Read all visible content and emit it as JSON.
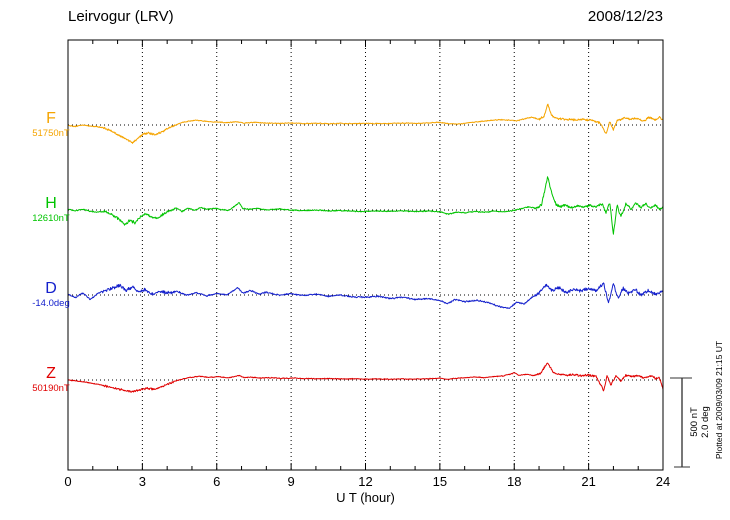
{
  "header": {
    "title": "Leirvogur (LRV)",
    "date": "2008/12/23"
  },
  "chart_data": {
    "type": "line",
    "title": "Leirvogur (LRV)",
    "date": "2008/12/23",
    "xlabel": "U T (hour)",
    "x_range": [
      0,
      24
    ],
    "x_ticks": [
      0,
      3,
      6,
      9,
      12,
      15,
      18,
      21,
      24
    ],
    "grid": "dotted-vertical-at-3h",
    "legend_position": "left-of-traces",
    "scale_bar": {
      "nt_label": "500 nT",
      "deg_label": "2.0 deg",
      "nt_value": 500,
      "deg_value": 2.0
    },
    "plotted_at": "Plotted at 2009/03/09 21:15 UT",
    "series": [
      {
        "name": "F",
        "label": "F",
        "value_label": "51750nT",
        "baseline_value": 51750,
        "unit": "nT",
        "color": "#f5a400",
        "noise": 4,
        "anchors": [
          [
            0,
            -2
          ],
          [
            0.3,
            -8
          ],
          [
            0.6,
            0
          ],
          [
            0.9,
            -6
          ],
          [
            1.2,
            -10
          ],
          [
            1.5,
            -18
          ],
          [
            1.8,
            -38
          ],
          [
            2.1,
            -62
          ],
          [
            2.35,
            -78
          ],
          [
            2.6,
            -100
          ],
          [
            2.8,
            -78
          ],
          [
            3.0,
            -52
          ],
          [
            3.25,
            -44
          ],
          [
            3.5,
            -56
          ],
          [
            3.75,
            -42
          ],
          [
            4.0,
            -22
          ],
          [
            4.3,
            -2
          ],
          [
            4.6,
            14
          ],
          [
            4.9,
            22
          ],
          [
            5.2,
            27
          ],
          [
            5.5,
            22
          ],
          [
            5.8,
            18
          ],
          [
            6.1,
            16
          ],
          [
            6.4,
            13
          ],
          [
            6.8,
            19
          ],
          [
            7.1,
            11
          ],
          [
            7.5,
            15
          ],
          [
            8.0,
            11
          ],
          [
            8.5,
            9
          ],
          [
            9.0,
            11
          ],
          [
            9.5,
            8
          ],
          [
            10,
            10
          ],
          [
            10.5,
            8
          ],
          [
            11,
            9
          ],
          [
            11.5,
            8
          ],
          [
            12,
            9
          ],
          [
            12.5,
            8
          ],
          [
            13,
            9
          ],
          [
            13.5,
            11
          ],
          [
            14,
            9
          ],
          [
            14.5,
            12
          ],
          [
            15,
            15
          ],
          [
            15.4,
            7
          ],
          [
            15.8,
            5
          ],
          [
            16.2,
            13
          ],
          [
            16.6,
            19
          ],
          [
            17,
            25
          ],
          [
            17.4,
            30
          ],
          [
            17.8,
            27
          ],
          [
            18.1,
            23
          ],
          [
            18.4,
            35
          ],
          [
            18.7,
            43
          ],
          [
            19.0,
            33
          ],
          [
            19.2,
            48
          ],
          [
            19.35,
            120
          ],
          [
            19.5,
            52
          ],
          [
            19.7,
            38
          ],
          [
            20,
            33
          ],
          [
            20.4,
            29
          ],
          [
            20.8,
            31
          ],
          [
            21.2,
            25
          ],
          [
            21.5,
            8
          ],
          [
            21.7,
            -52
          ],
          [
            21.85,
            18
          ],
          [
            22.0,
            -28
          ],
          [
            22.15,
            24
          ],
          [
            22.4,
            38
          ],
          [
            22.7,
            33
          ],
          [
            23.0,
            37
          ],
          [
            23.2,
            20
          ],
          [
            23.45,
            44
          ],
          [
            23.7,
            28
          ],
          [
            23.85,
            46
          ],
          [
            24,
            28
          ]
        ]
      },
      {
        "name": "H",
        "label": "H",
        "value_label": "12610nT",
        "baseline_value": 12610,
        "unit": "nT",
        "color": "#00c400",
        "noise": 5,
        "anchors": [
          [
            0,
            2
          ],
          [
            0.3,
            -4
          ],
          [
            0.6,
            4
          ],
          [
            0.9,
            -8
          ],
          [
            1.2,
            -12
          ],
          [
            1.5,
            -6
          ],
          [
            1.8,
            -28
          ],
          [
            2.05,
            -52
          ],
          [
            2.3,
            -82
          ],
          [
            2.5,
            -58
          ],
          [
            2.7,
            -72
          ],
          [
            2.9,
            -44
          ],
          [
            3.1,
            -22
          ],
          [
            3.35,
            -38
          ],
          [
            3.6,
            -46
          ],
          [
            3.85,
            -20
          ],
          [
            4.1,
            -4
          ],
          [
            4.35,
            12
          ],
          [
            4.6,
            -8
          ],
          [
            4.85,
            10
          ],
          [
            5.1,
            -2
          ],
          [
            5.35,
            14
          ],
          [
            5.6,
            4
          ],
          [
            5.9,
            10
          ],
          [
            6.2,
            2
          ],
          [
            6.5,
            -2
          ],
          [
            6.9,
            42
          ],
          [
            7.05,
            8
          ],
          [
            7.3,
            4
          ],
          [
            7.6,
            10
          ],
          [
            8,
            0
          ],
          [
            8.5,
            6
          ],
          [
            9,
            0
          ],
          [
            9.5,
            -4
          ],
          [
            10,
            0
          ],
          [
            10.5,
            -5
          ],
          [
            11,
            -4
          ],
          [
            11.5,
            -7
          ],
          [
            12,
            -8
          ],
          [
            12.5,
            -5
          ],
          [
            13,
            -7
          ],
          [
            13.5,
            -5
          ],
          [
            14,
            -8
          ],
          [
            14.5,
            -6
          ],
          [
            15,
            -10
          ],
          [
            15.35,
            -24
          ],
          [
            15.65,
            -12
          ],
          [
            16,
            -16
          ],
          [
            16.4,
            -8
          ],
          [
            16.8,
            -13
          ],
          [
            17.2,
            -6
          ],
          [
            17.6,
            -11
          ],
          [
            18,
            -2
          ],
          [
            18.3,
            8
          ],
          [
            18.6,
            18
          ],
          [
            18.9,
            9
          ],
          [
            19.1,
            28
          ],
          [
            19.35,
            188
          ],
          [
            19.55,
            75
          ],
          [
            19.7,
            28
          ],
          [
            19.85,
            18
          ],
          [
            20.05,
            26
          ],
          [
            20.3,
            14
          ],
          [
            20.55,
            24
          ],
          [
            20.8,
            16
          ],
          [
            21.05,
            24
          ],
          [
            21.3,
            18
          ],
          [
            21.55,
            36
          ],
          [
            21.7,
            -18
          ],
          [
            21.85,
            42
          ],
          [
            22.0,
            -135
          ],
          [
            22.15,
            28
          ],
          [
            22.3,
            -38
          ],
          [
            22.5,
            34
          ],
          [
            22.7,
            8
          ],
          [
            22.9,
            38
          ],
          [
            23.1,
            14
          ],
          [
            23.3,
            34
          ],
          [
            23.5,
            10
          ],
          [
            23.7,
            28
          ],
          [
            23.85,
            6
          ],
          [
            24,
            18
          ]
        ]
      },
      {
        "name": "D",
        "label": "D",
        "value_label": "-14.0deg",
        "baseline_value": -14.0,
        "unit": "deg",
        "color": "#1420cc",
        "noise": 0.025,
        "anchors": [
          [
            0,
            0.02
          ],
          [
            0.3,
            -0.06
          ],
          [
            0.6,
            0.05
          ],
          [
            0.9,
            -0.1
          ],
          [
            1.2,
            0.04
          ],
          [
            1.5,
            0.1
          ],
          [
            1.8,
            0.16
          ],
          [
            2.1,
            0.22
          ],
          [
            2.35,
            0.1
          ],
          [
            2.6,
            0.18
          ],
          [
            2.85,
            0.06
          ],
          [
            3.1,
            0.13
          ],
          [
            3.4,
            0.02
          ],
          [
            3.7,
            0.09
          ],
          [
            4,
            0.04
          ],
          [
            4.4,
            0.08
          ],
          [
            4.8,
            0.0
          ],
          [
            5.2,
            0.05
          ],
          [
            5.6,
            -0.02
          ],
          [
            6,
            0.04
          ],
          [
            6.4,
            0.0
          ],
          [
            6.85,
            0.16
          ],
          [
            7.05,
            0.04
          ],
          [
            7.35,
            0.1
          ],
          [
            7.7,
            0.02
          ],
          [
            8,
            0.06
          ],
          [
            8.5,
            0.0
          ],
          [
            9,
            0.03
          ],
          [
            9.5,
            -0.01
          ],
          [
            10,
            0.02
          ],
          [
            10.5,
            -0.03
          ],
          [
            11,
            0.0
          ],
          [
            11.5,
            -0.04
          ],
          [
            12,
            -0.05
          ],
          [
            12.5,
            -0.03
          ],
          [
            13,
            -0.08
          ],
          [
            13.5,
            -0.05
          ],
          [
            14,
            -0.1
          ],
          [
            14.5,
            -0.08
          ],
          [
            15,
            -0.12
          ],
          [
            15.3,
            -0.2
          ],
          [
            15.6,
            -0.1
          ],
          [
            16,
            -0.15
          ],
          [
            16.5,
            -0.12
          ],
          [
            17,
            -0.18
          ],
          [
            17.4,
            -0.26
          ],
          [
            17.8,
            -0.3
          ],
          [
            18.1,
            -0.16
          ],
          [
            18.4,
            -0.2
          ],
          [
            18.7,
            -0.06
          ],
          [
            19,
            0.04
          ],
          [
            19.3,
            0.24
          ],
          [
            19.5,
            0.1
          ],
          [
            19.8,
            0.16
          ],
          [
            20.1,
            0.06
          ],
          [
            20.4,
            0.14
          ],
          [
            20.7,
            0.09
          ],
          [
            21,
            0.15
          ],
          [
            21.3,
            0.1
          ],
          [
            21.6,
            0.26
          ],
          [
            21.8,
            -0.18
          ],
          [
            22,
            0.24
          ],
          [
            22.2,
            -0.08
          ],
          [
            22.4,
            0.16
          ],
          [
            22.6,
            0.05
          ],
          [
            22.9,
            0.12
          ],
          [
            23.1,
            0.0
          ],
          [
            23.4,
            0.1
          ],
          [
            23.7,
            0.02
          ],
          [
            24,
            0.1
          ]
        ]
      },
      {
        "name": "Z",
        "label": "Z",
        "value_label": "50190nT",
        "baseline_value": 50190,
        "unit": "nT",
        "color": "#e00000",
        "noise": 4,
        "anchors": [
          [
            0,
            0
          ],
          [
            0.4,
            -6
          ],
          [
            0.8,
            -14
          ],
          [
            1.2,
            -24
          ],
          [
            1.6,
            -36
          ],
          [
            2.0,
            -50
          ],
          [
            2.3,
            -60
          ],
          [
            2.6,
            -66
          ],
          [
            2.9,
            -56
          ],
          [
            3.2,
            -46
          ],
          [
            3.5,
            -52
          ],
          [
            3.8,
            -36
          ],
          [
            4.1,
            -18
          ],
          [
            4.5,
            2
          ],
          [
            4.9,
            14
          ],
          [
            5.3,
            20
          ],
          [
            5.7,
            15
          ],
          [
            6.1,
            18
          ],
          [
            6.5,
            12
          ],
          [
            6.9,
            26
          ],
          [
            7.1,
            13
          ],
          [
            7.4,
            16
          ],
          [
            7.8,
            11
          ],
          [
            8.2,
            13
          ],
          [
            8.6,
            9
          ],
          [
            9,
            11
          ],
          [
            9.5,
            8
          ],
          [
            10,
            7
          ],
          [
            10.5,
            8
          ],
          [
            11,
            6
          ],
          [
            11.5,
            7
          ],
          [
            12,
            5
          ],
          [
            12.5,
            6
          ],
          [
            13,
            4
          ],
          [
            13.5,
            6
          ],
          [
            14,
            5
          ],
          [
            14.5,
            7
          ],
          [
            15,
            11
          ],
          [
            15.3,
            3
          ],
          [
            15.6,
            9
          ],
          [
            16,
            13
          ],
          [
            16.4,
            17
          ],
          [
            16.8,
            13
          ],
          [
            17.2,
            19
          ],
          [
            17.6,
            24
          ],
          [
            18.0,
            40
          ],
          [
            18.2,
            26
          ],
          [
            18.5,
            32
          ],
          [
            18.8,
            24
          ],
          [
            19.05,
            36
          ],
          [
            19.35,
            98
          ],
          [
            19.55,
            46
          ],
          [
            19.8,
            32
          ],
          [
            20.1,
            27
          ],
          [
            20.4,
            30
          ],
          [
            20.7,
            24
          ],
          [
            21,
            28
          ],
          [
            21.3,
            20
          ],
          [
            21.6,
            -58
          ],
          [
            21.75,
            26
          ],
          [
            21.9,
            -28
          ],
          [
            22.1,
            22
          ],
          [
            22.3,
            -8
          ],
          [
            22.5,
            27
          ],
          [
            22.8,
            20
          ],
          [
            23,
            24
          ],
          [
            23.2,
            12
          ],
          [
            23.5,
            22
          ],
          [
            23.7,
            8
          ],
          [
            23.85,
            16
          ],
          [
            24,
            -48
          ]
        ]
      }
    ]
  }
}
